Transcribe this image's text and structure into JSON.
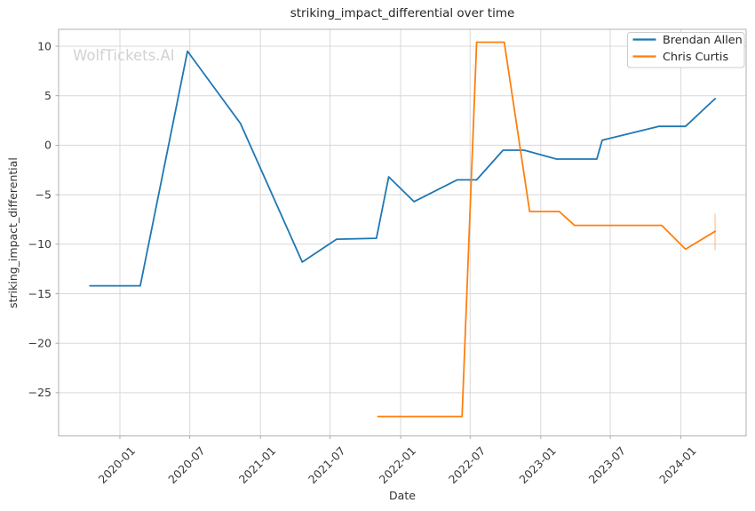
{
  "figure": {
    "watermark": "WolfTickets.AI",
    "background": "#ffffff"
  },
  "chart_data": {
    "type": "line",
    "title": "striking_impact_differential over time",
    "xlabel": "Date",
    "ylabel": "striking_impact_differential",
    "watermark": "WolfTickets.AI",
    "grid": true,
    "legend_position": "upper right",
    "ylim": [
      -29.4,
      11.7
    ],
    "yticks": [
      10,
      5,
      0,
      -5,
      -10,
      -15,
      -20,
      -25
    ],
    "ytick_labels": [
      "10",
      "5",
      "0",
      "−5",
      "−10",
      "−15",
      "−20",
      "−25"
    ],
    "xticks": [
      "2020-01",
      "2020-07",
      "2021-01",
      "2021-07",
      "2022-01",
      "2022-07",
      "2023-01",
      "2023-07",
      "2024-01"
    ],
    "series": [
      {
        "name": "Brendan Allen",
        "color": "#1f77b4",
        "points": [
          {
            "x": "2019-10-15",
            "y": -14.2
          },
          {
            "x": "2020-02-23",
            "y": -14.2
          },
          {
            "x": "2020-06-25",
            "y": 9.5
          },
          {
            "x": "2020-11-10",
            "y": 2.2
          },
          {
            "x": "2021-04-20",
            "y": -11.8
          },
          {
            "x": "2021-07-18",
            "y": -9.5
          },
          {
            "x": "2021-10-30",
            "y": -9.4
          },
          {
            "x": "2021-12-01",
            "y": -3.2
          },
          {
            "x": "2022-02-05",
            "y": -5.7
          },
          {
            "x": "2022-05-28",
            "y": -3.5
          },
          {
            "x": "2022-07-18",
            "y": -3.5
          },
          {
            "x": "2022-09-25",
            "y": -0.5
          },
          {
            "x": "2022-11-19",
            "y": -0.5
          },
          {
            "x": "2023-02-11",
            "y": -1.4
          },
          {
            "x": "2023-05-27",
            "y": -1.4
          },
          {
            "x": "2023-06-10",
            "y": 0.5
          },
          {
            "x": "2023-11-04",
            "y": 1.9
          },
          {
            "x": "2024-01-13",
            "y": 1.9
          },
          {
            "x": "2024-03-30",
            "y": 4.7
          }
        ]
      },
      {
        "name": "Chris Curtis",
        "color": "#ff7f0e",
        "points": [
          {
            "x": "2021-11-03",
            "y": -27.4
          },
          {
            "x": "2022-06-10",
            "y": -27.4
          },
          {
            "x": "2022-07-18",
            "y": 10.4
          },
          {
            "x": "2022-09-28",
            "y": 10.4
          },
          {
            "x": "2022-12-03",
            "y": -6.7
          },
          {
            "x": "2023-02-18",
            "y": -6.7
          },
          {
            "x": "2023-03-30",
            "y": -8.1
          },
          {
            "x": "2023-11-12",
            "y": -8.1
          },
          {
            "x": "2024-01-13",
            "y": -10.5
          },
          {
            "x": "2024-03-30",
            "y": -8.7
          }
        ],
        "error_bar": {
          "x": "2024-03-30",
          "y_low": -10.6,
          "y_high": -6.9
        }
      }
    ]
  }
}
